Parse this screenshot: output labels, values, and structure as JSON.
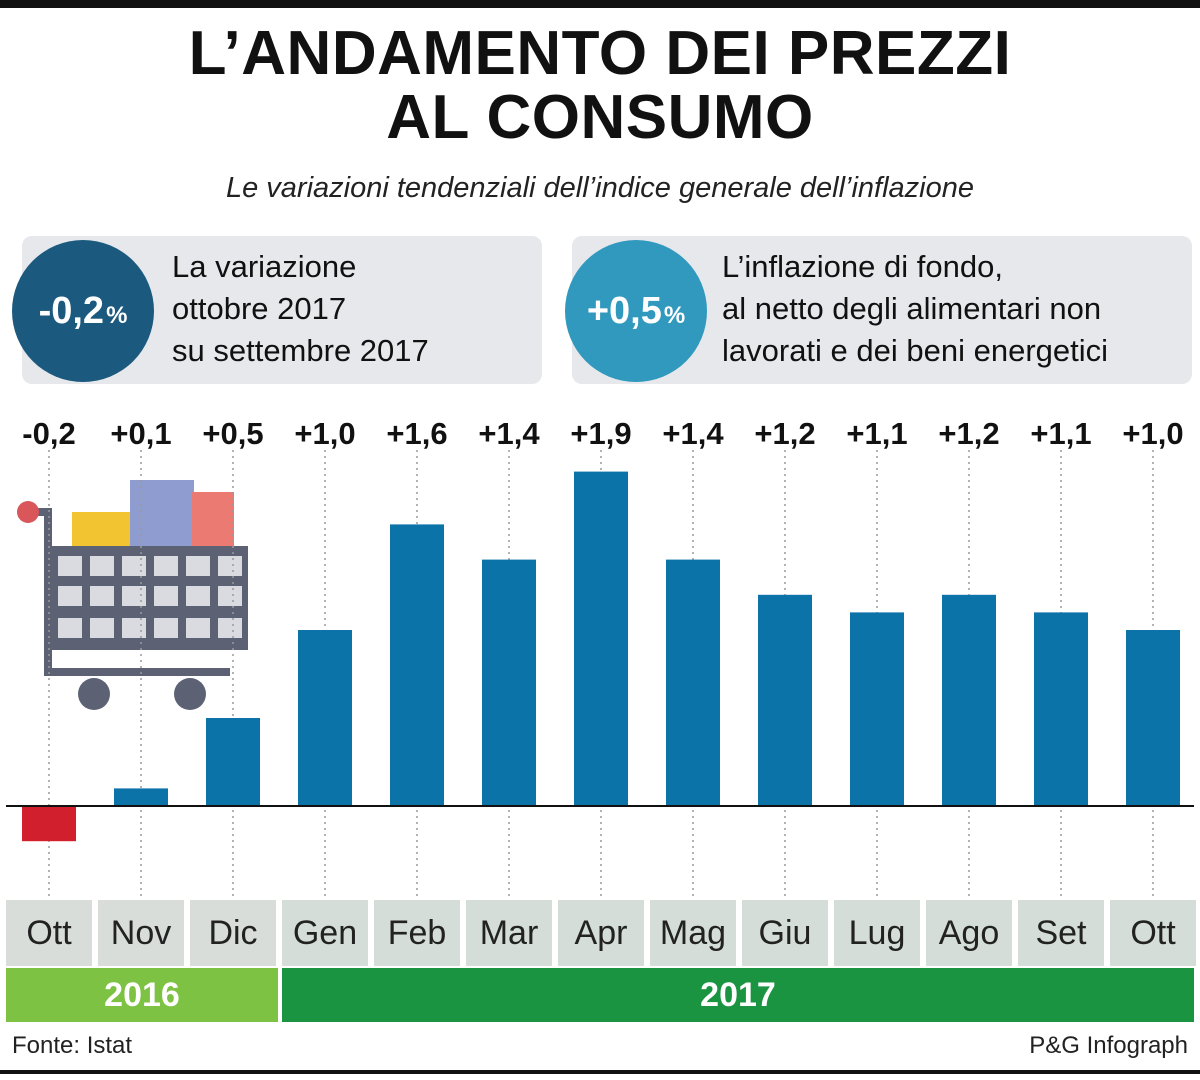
{
  "header": {
    "title_line1": "L’ANDAMENTO DEI PREZZI",
    "title_line2": "AL CONSUMO",
    "subtitle": "Le variazioni tendenziali dell’indice generale dell’inflazione"
  },
  "callouts": [
    {
      "value": "-0,2",
      "unit": "%",
      "lines": [
        "La variazione",
        "ottobre 2017",
        "su settembre 2017"
      ]
    },
    {
      "value": "+0,5",
      "unit": "%",
      "lines": [
        "L’inflazione di fondo,",
        "al netto degli alimentari non",
        "lavorati e dei beni energetici"
      ]
    }
  ],
  "chart_data": {
    "type": "bar",
    "categories": [
      "Ott",
      "Nov",
      "Dic",
      "Gen",
      "Feb",
      "Mar",
      "Apr",
      "Mag",
      "Giu",
      "Lug",
      "Ago",
      "Set",
      "Ott"
    ],
    "values": [
      -0.2,
      0.1,
      0.5,
      1.0,
      1.6,
      1.4,
      1.9,
      1.4,
      1.2,
      1.1,
      1.2,
      1.1,
      1.0
    ],
    "value_labels": [
      "-0,2",
      "+0,1",
      "+0,5",
      "+1,0",
      "+1,6",
      "+1,4",
      "+1,9",
      "+1,4",
      "+1,2",
      "+1,1",
      "+1,2",
      "+1,1",
      "+1,0"
    ],
    "years": [
      {
        "label": "2016",
        "months": 3
      },
      {
        "label": "2017",
        "months": 10
      }
    ],
    "colors": {
      "positive": "#0b73a8",
      "negative": "#d21f2e"
    }
  },
  "footer": {
    "source": "Fonte: Istat",
    "credit": "P&G Infograph"
  }
}
